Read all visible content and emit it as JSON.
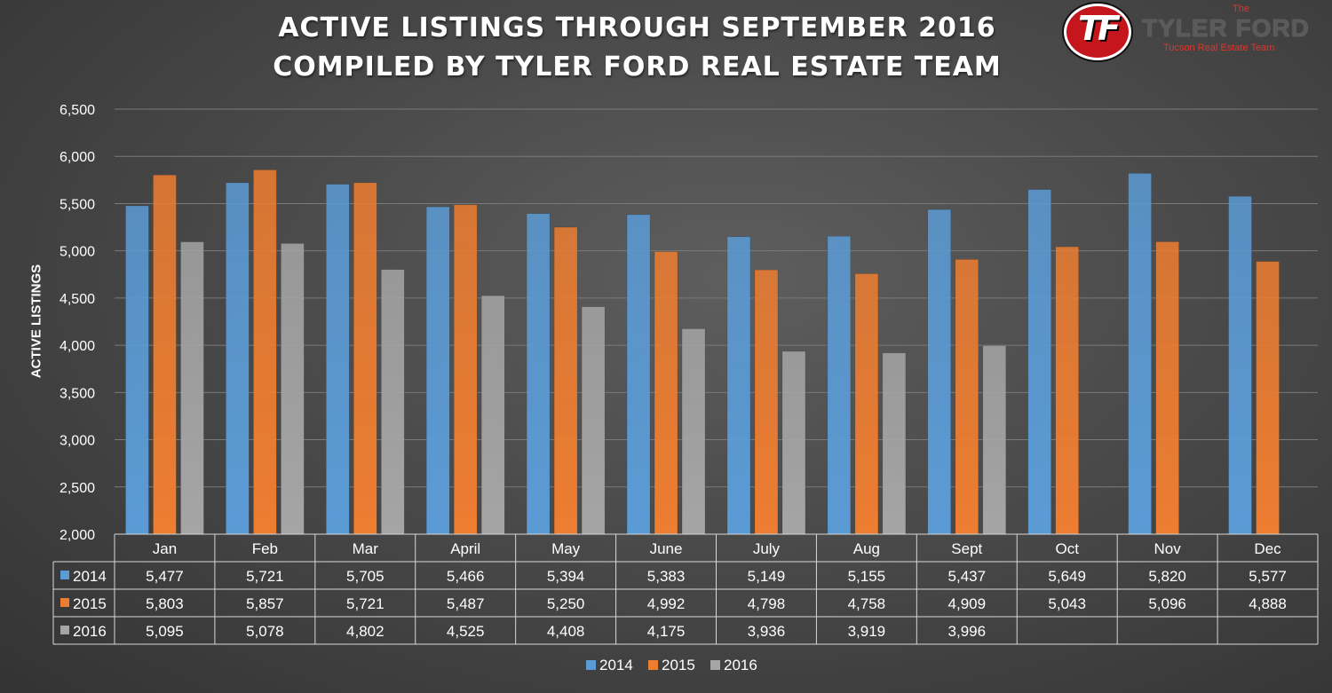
{
  "title_line1": "ACTIVE LISTINGS THROUGH SEPTEMBER 2016",
  "title_line2": "COMPILED BY TYLER FORD REAL ESTATE TEAM",
  "logo": {
    "monogram": "TF",
    "the": "The",
    "name": "TYLER FORD",
    "tagline": "Tucson Real Estate Team"
  },
  "chart_data": {
    "type": "bar",
    "ylabel": "ACTIVE LISTINGS",
    "ylim": [
      2000,
      6500
    ],
    "yticks": [
      "2,000",
      "2,500",
      "3,000",
      "3,500",
      "4,000",
      "4,500",
      "5,000",
      "5,500",
      "6,000",
      "6,500"
    ],
    "grid": true,
    "legend_position": "bottom",
    "categories": [
      "Jan",
      "Feb",
      "Mar",
      "April",
      "May",
      "June",
      "July",
      "Aug",
      "Sept",
      "Oct",
      "Nov",
      "Dec"
    ],
    "series": [
      {
        "name": "2014",
        "color": "#5b9bd5",
        "values": [
          5477,
          5721,
          5705,
          5466,
          5394,
          5383,
          5149,
          5155,
          5437,
          5649,
          5820,
          5577
        ],
        "labels": [
          "5,477",
          "5,721",
          "5,705",
          "5,466",
          "5,394",
          "5,383",
          "5,149",
          "5,155",
          "5,437",
          "5,649",
          "5,820",
          "5,577"
        ]
      },
      {
        "name": "2015",
        "color": "#ed7d31",
        "values": [
          5803,
          5857,
          5721,
          5487,
          5250,
          4992,
          4798,
          4758,
          4909,
          5043,
          5096,
          4888
        ],
        "labels": [
          "5,803",
          "5,857",
          "5,721",
          "5,487",
          "5,250",
          "4,992",
          "4,798",
          "4,758",
          "4,909",
          "5,043",
          "5,096",
          "4,888"
        ]
      },
      {
        "name": "2016",
        "color": "#a5a5a5",
        "values": [
          5095,
          5078,
          4802,
          4525,
          4408,
          4175,
          3936,
          3919,
          3996,
          null,
          null,
          null
        ],
        "labels": [
          "5,095",
          "5,078",
          "4,802",
          "4,525",
          "4,408",
          "4,175",
          "3,936",
          "3,919",
          "3,996",
          "",
          "",
          ""
        ]
      }
    ]
  }
}
